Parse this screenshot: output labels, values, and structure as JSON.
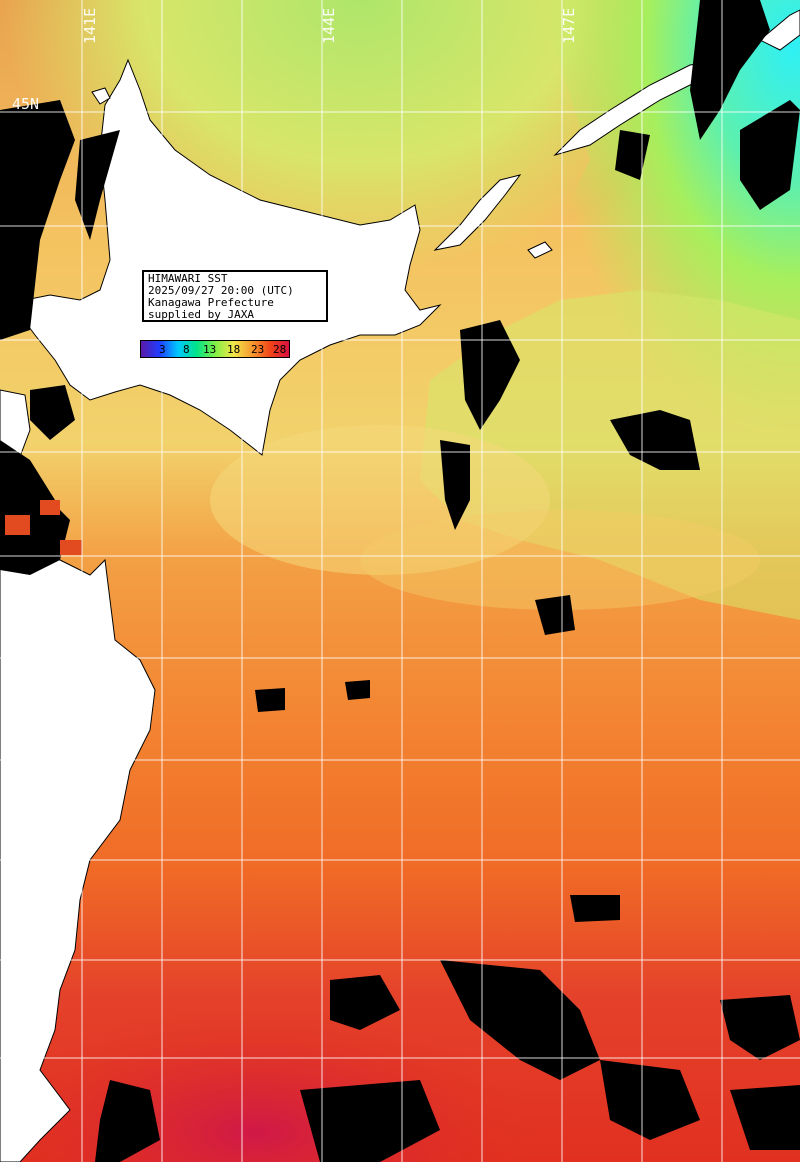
{
  "info_box": {
    "line1": "HIMAWARI SST",
    "line2": "2025/09/27 20:00 (UTC)",
    "line3": "Kanagawa Prefecture",
    "line4": "supplied by JAXA"
  },
  "legend": {
    "ticks": [
      "3",
      "8",
      "13",
      "18",
      "23",
      "28"
    ],
    "gradient": [
      "#5a1aa8",
      "#1f3dff",
      "#00c8ff",
      "#00e38a",
      "#7ff046",
      "#f2e64a",
      "#f79a30",
      "#f04418",
      "#d81040"
    ]
  },
  "grid": {
    "lon_labels": [
      "141E",
      "144E",
      "147E"
    ],
    "lat_labels": [
      "45N"
    ]
  },
  "colors": {
    "land": "#ffffff",
    "cloud": "#000000",
    "cold_sea": "#3ff0e8",
    "cool_sea": "#a6ef5a",
    "mild_sea": "#f2d86a",
    "warm_sea": "#f59838",
    "hot_sea": "#ef5c22",
    "very_hot_sea": "#dd2b2e",
    "grid": "#ffffff"
  }
}
